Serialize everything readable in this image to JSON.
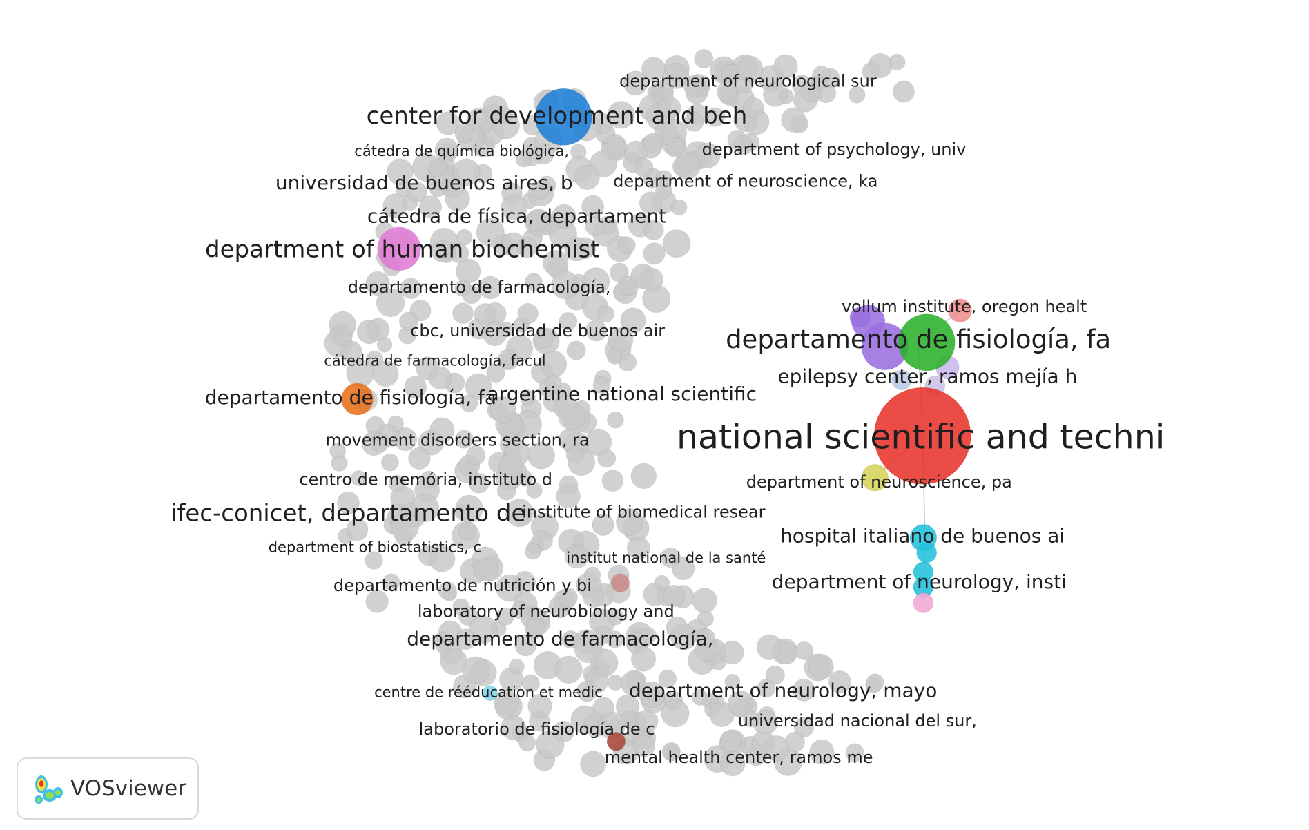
{
  "app": {
    "logo_text": "VOSviewer",
    "logo_icon": "vosviewer-logo-icon"
  },
  "colors": {
    "gray_node": "#c9c9c9",
    "edge": "#b9c8d6",
    "red": "#e8332b",
    "blue": "#1e7fd6",
    "pink": "#e07ad6",
    "orange": "#e8701a",
    "green": "#2bb02b",
    "purple": "#9b6ee0",
    "cyan": "#22c1dc",
    "yellow": "#d6d35a",
    "salmon": "#ef8c8c",
    "rose": "#c98b88",
    "brown": "#a8473a",
    "lightcyan": "#7fd6ea",
    "lightpink": "#f2a6d4"
  },
  "labels": [
    {
      "text": "department of neurological sur",
      "tier": "s"
    },
    {
      "text": "center for development and beh",
      "tier": "l"
    },
    {
      "text": "cátedra de química biológica,",
      "tier": "xs"
    },
    {
      "text": "department of psychology, univ",
      "tier": "s"
    },
    {
      "text": "universidad de buenos aires, b",
      "tier": "m"
    },
    {
      "text": "department of neuroscience, ka",
      "tier": "s"
    },
    {
      "text": "cátedra de física, departament",
      "tier": "m"
    },
    {
      "text": "department of human biochemist",
      "tier": "l"
    },
    {
      "text": "departamento de farmacología,",
      "tier": "s"
    },
    {
      "text": "vollum institute, oregon healt",
      "tier": "s"
    },
    {
      "text": "departamento de fisiología, fa",
      "tier": "xl"
    },
    {
      "text": "cbc, universidad de buenos air",
      "tier": "s"
    },
    {
      "text": "cátedra de farmacología, facul",
      "tier": "xs"
    },
    {
      "text": "epilepsy center, ramos mejía h",
      "tier": "m"
    },
    {
      "text": "departamento de fisiología, fa",
      "tier": "m"
    },
    {
      "text": "argentine national scientific",
      "tier": "m"
    },
    {
      "text": "national scientific and techni",
      "tier": "xxl"
    },
    {
      "text": "movement disorders section, ra",
      "tier": "s"
    },
    {
      "text": "centro de memória, instituto d",
      "tier": "s"
    },
    {
      "text": "department of neuroscience, pa",
      "tier": "s"
    },
    {
      "text": "ifec-conicet, departamento de",
      "tier": "l"
    },
    {
      "text": "institute of biomedical resear",
      "tier": "s"
    },
    {
      "text": "hospital italiano de buenos ai",
      "tier": "m"
    },
    {
      "text": "department of biostatistics, c",
      "tier": "xs"
    },
    {
      "text": "institut national de la santé",
      "tier": "xs"
    },
    {
      "text": "departamento de nutrición y bi",
      "tier": "s"
    },
    {
      "text": "department of neurology, insti",
      "tier": "m"
    },
    {
      "text": "laboratory of neurobiology and",
      "tier": "s"
    },
    {
      "text": "departamento de farmacología,",
      "tier": "m"
    },
    {
      "text": "centre de rééducation et medic",
      "tier": "xs"
    },
    {
      "text": "department of neurology, mayo",
      "tier": "m"
    },
    {
      "text": "universidad nacional del sur,",
      "tier": "s"
    },
    {
      "text": "laboratorio de fisiología de c",
      "tier": "s"
    },
    {
      "text": "mental health center, ramos me",
      "tier": "s"
    }
  ]
}
